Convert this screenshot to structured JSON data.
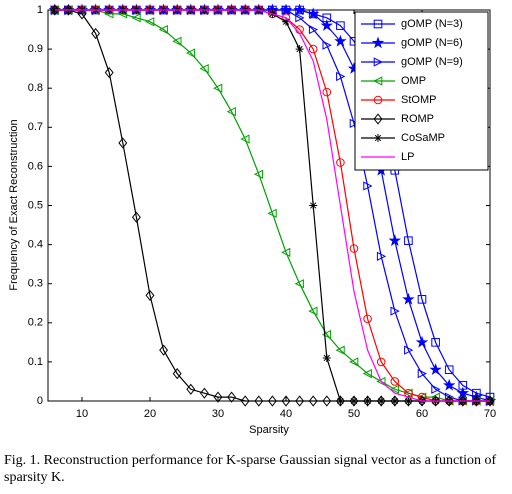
{
  "chart_data": {
    "type": "line",
    "xlabel": "Sparsity",
    "ylabel": "Frequency of Exact Reconstruction",
    "caption": "Fig. 1.  Reconstruction performance for K-sparse Gaussian signal vector as a function of sparsity K.",
    "xlim": [
      5,
      70
    ],
    "ylim": [
      0,
      1
    ],
    "xticks": [
      10,
      20,
      30,
      40,
      50,
      60,
      70
    ],
    "yticks": [
      0,
      0.1,
      0.2,
      0.3,
      0.4,
      0.5,
      0.6,
      0.7,
      0.8,
      0.9,
      1
    ],
    "x": [
      6,
      8,
      10,
      12,
      14,
      16,
      18,
      20,
      22,
      24,
      26,
      28,
      30,
      32,
      34,
      36,
      38,
      40,
      42,
      44,
      46,
      48,
      50,
      52,
      54,
      56,
      58,
      60,
      62,
      64,
      66,
      68,
      70
    ],
    "series": [
      {
        "name": "gOMP (N=3)",
        "color": "#0000ff",
        "marker": "square",
        "values": [
          1,
          1,
          1,
          1,
          1,
          1,
          1,
          1,
          1,
          1,
          1,
          1,
          1,
          1,
          1,
          1,
          1,
          1,
          1,
          0.99,
          0.98,
          0.96,
          0.92,
          0.85,
          0.74,
          0.59,
          0.41,
          0.26,
          0.15,
          0.08,
          0.04,
          0.02,
          0.01
        ]
      },
      {
        "name": "gOMP (N=6)",
        "color": "#0000ff",
        "marker": "star",
        "values": [
          1,
          1,
          1,
          1,
          1,
          1,
          1,
          1,
          1,
          1,
          1,
          1,
          1,
          1,
          1,
          1,
          1,
          1,
          1,
          0.99,
          0.96,
          0.92,
          0.85,
          0.74,
          0.59,
          0.41,
          0.26,
          0.15,
          0.08,
          0.04,
          0.02,
          0.01,
          0
        ]
      },
      {
        "name": "gOMP (N=9)",
        "color": "#0000ff",
        "marker": "triangle-right",
        "values": [
          1,
          1,
          1,
          1,
          1,
          1,
          1,
          1,
          1,
          1,
          1,
          1,
          1,
          1,
          1,
          1,
          1,
          1,
          0.98,
          0.95,
          0.91,
          0.83,
          0.71,
          0.55,
          0.37,
          0.23,
          0.13,
          0.07,
          0.03,
          0.01,
          0,
          0,
          0
        ]
      },
      {
        "name": "OMP",
        "color": "#00a000",
        "marker": "triangle-left",
        "values": [
          1,
          1,
          1,
          1,
          0.99,
          0.99,
          0.98,
          0.97,
          0.95,
          0.92,
          0.89,
          0.85,
          0.8,
          0.74,
          0.67,
          0.58,
          0.48,
          0.38,
          0.3,
          0.23,
          0.17,
          0.13,
          0.1,
          0.07,
          0.05,
          0.03,
          0.02,
          0.01,
          0.01,
          0,
          0,
          0,
          0
        ]
      },
      {
        "name": "StOMP",
        "color": "#ff0000",
        "marker": "circle",
        "values": [
          1,
          1,
          1,
          1,
          1,
          1,
          1,
          1,
          1,
          1,
          1,
          1,
          1,
          1,
          1,
          1,
          0.99,
          0.98,
          0.95,
          0.9,
          0.79,
          0.61,
          0.39,
          0.21,
          0.1,
          0.05,
          0.02,
          0.01,
          0,
          0,
          0,
          0,
          0
        ]
      },
      {
        "name": "ROMP",
        "color": "#000000",
        "marker": "diamond",
        "values": [
          1,
          1,
          0.99,
          0.94,
          0.84,
          0.66,
          0.47,
          0.27,
          0.13,
          0.07,
          0.03,
          0.02,
          0.01,
          0.01,
          0,
          0,
          0,
          0,
          0,
          0,
          0,
          0,
          0,
          0,
          0,
          0,
          0,
          0,
          0,
          0,
          0,
          0,
          0
        ]
      },
      {
        "name": "CoSaMP",
        "color": "#000000",
        "marker": "asterisk",
        "values": [
          1,
          1,
          1,
          1,
          1,
          1,
          1,
          1,
          1,
          1,
          1,
          1,
          1,
          1,
          1,
          1,
          0.99,
          0.97,
          0.9,
          0.5,
          0.11,
          0,
          0,
          0,
          0,
          0,
          0,
          0,
          0,
          0,
          0,
          0,
          0
        ]
      },
      {
        "name": "LP",
        "color": "#ff00ff",
        "marker": "none",
        "values": [
          1,
          1,
          1,
          1,
          1,
          1,
          1,
          1,
          1,
          1,
          1,
          1,
          1,
          1,
          1,
          1,
          0.99,
          0.98,
          0.94,
          0.87,
          0.72,
          0.5,
          0.28,
          0.13,
          0.05,
          0.02,
          0.01,
          0,
          0,
          0,
          0,
          0,
          0
        ]
      }
    ]
  }
}
